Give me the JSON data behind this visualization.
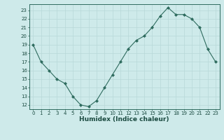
{
  "x": [
    0,
    1,
    2,
    3,
    4,
    5,
    6,
    7,
    8,
    9,
    10,
    11,
    12,
    13,
    14,
    15,
    16,
    17,
    18,
    19,
    20,
    21,
    22,
    23
  ],
  "y": [
    19,
    17,
    16,
    15,
    14.5,
    13,
    12,
    11.8,
    12.5,
    14,
    15.5,
    17,
    18.5,
    19.5,
    20,
    21,
    22.3,
    23.3,
    22.5,
    22.5,
    22,
    21,
    18.5,
    17
  ],
  "line_color": "#2e6b5e",
  "marker": "D",
  "marker_size": 2.0,
  "bg_color": "#ceeaea",
  "grid_color": "#b8d8d8",
  "xlabel": "Humidex (Indice chaleur)",
  "xlim": [
    -0.5,
    23.5
  ],
  "ylim": [
    11.5,
    23.7
  ],
  "yticks": [
    12,
    13,
    14,
    15,
    16,
    17,
    18,
    19,
    20,
    21,
    22,
    23
  ],
  "xticks": [
    0,
    1,
    2,
    3,
    4,
    5,
    6,
    7,
    8,
    9,
    10,
    11,
    12,
    13,
    14,
    15,
    16,
    17,
    18,
    19,
    20,
    21,
    22,
    23
  ],
  "tick_fontsize": 5.0,
  "xlabel_fontsize": 6.5,
  "xlabel_bold": true,
  "linewidth": 0.8
}
